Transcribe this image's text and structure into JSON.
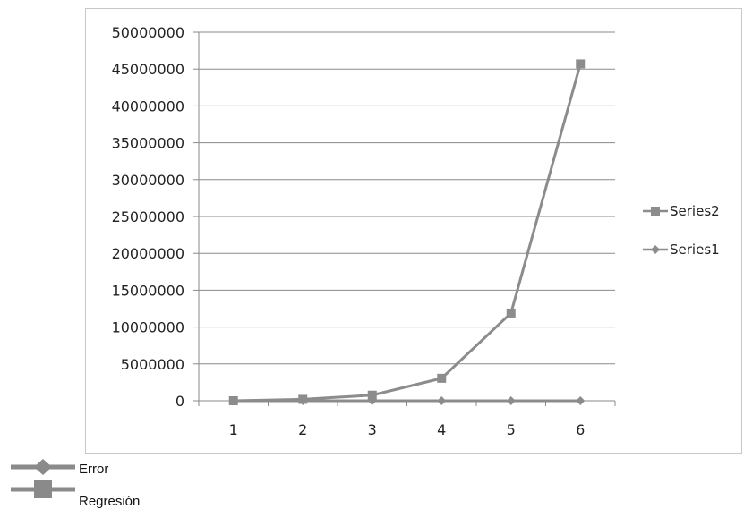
{
  "chart_data": {
    "type": "line",
    "categories": [
      "1",
      "2",
      "3",
      "4",
      "5",
      "6"
    ],
    "series": [
      {
        "name": "Series1",
        "marker": "diamond",
        "color": "#8c8c8c",
        "values": [
          1,
          1,
          1,
          1,
          1,
          1
        ]
      },
      {
        "name": "Series2",
        "marker": "square",
        "color": "#8c8c8c",
        "values": [
          0,
          190000,
          760000,
          3050000,
          11900000,
          45700000
        ]
      }
    ],
    "ylim": [
      0,
      50000000
    ],
    "y_ticks": [
      "0",
      "5000000",
      "10000000",
      "15000000",
      "20000000",
      "25000000",
      "30000000",
      "35000000",
      "40000000",
      "45000000",
      "50000000"
    ],
    "grid": true,
    "legend_placement": "right",
    "title": "",
    "xlabel": "",
    "ylabel": ""
  },
  "bottom_legend": [
    {
      "label": "Error",
      "marker": "diamond"
    },
    {
      "label": "Regresión",
      "marker": "square"
    }
  ]
}
